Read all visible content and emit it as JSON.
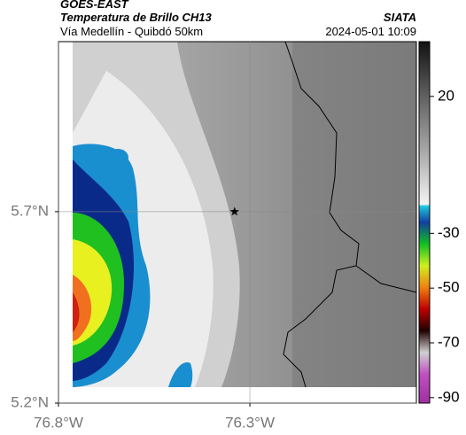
{
  "header": {
    "source": "GOES-EAST",
    "product": "Temperatura de Brillo CH13",
    "location": "Vía Medellín - Quibdó 50km",
    "agency": "SIATA",
    "datetime": "2024-05-01 10:09"
  },
  "map": {
    "xlim": [
      -76.8,
      -75.865
    ],
    "ylim": [
      5.2,
      6.144
    ],
    "xticks": [
      {
        "value": -76.8,
        "label": "76.8°W"
      },
      {
        "value": -76.3,
        "label": "76.3°W"
      }
    ],
    "yticks": [
      {
        "value": 5.2,
        "label": "5.2°N"
      },
      {
        "value": 5.7,
        "label": "5.7°N"
      }
    ],
    "grid": true,
    "marker": {
      "lon": -76.34,
      "lat": 5.7
    }
  },
  "colorbar": {
    "lim": [
      -92,
      40
    ],
    "ticks": [
      20,
      -30,
      -50,
      -70,
      -90
    ]
  }
}
